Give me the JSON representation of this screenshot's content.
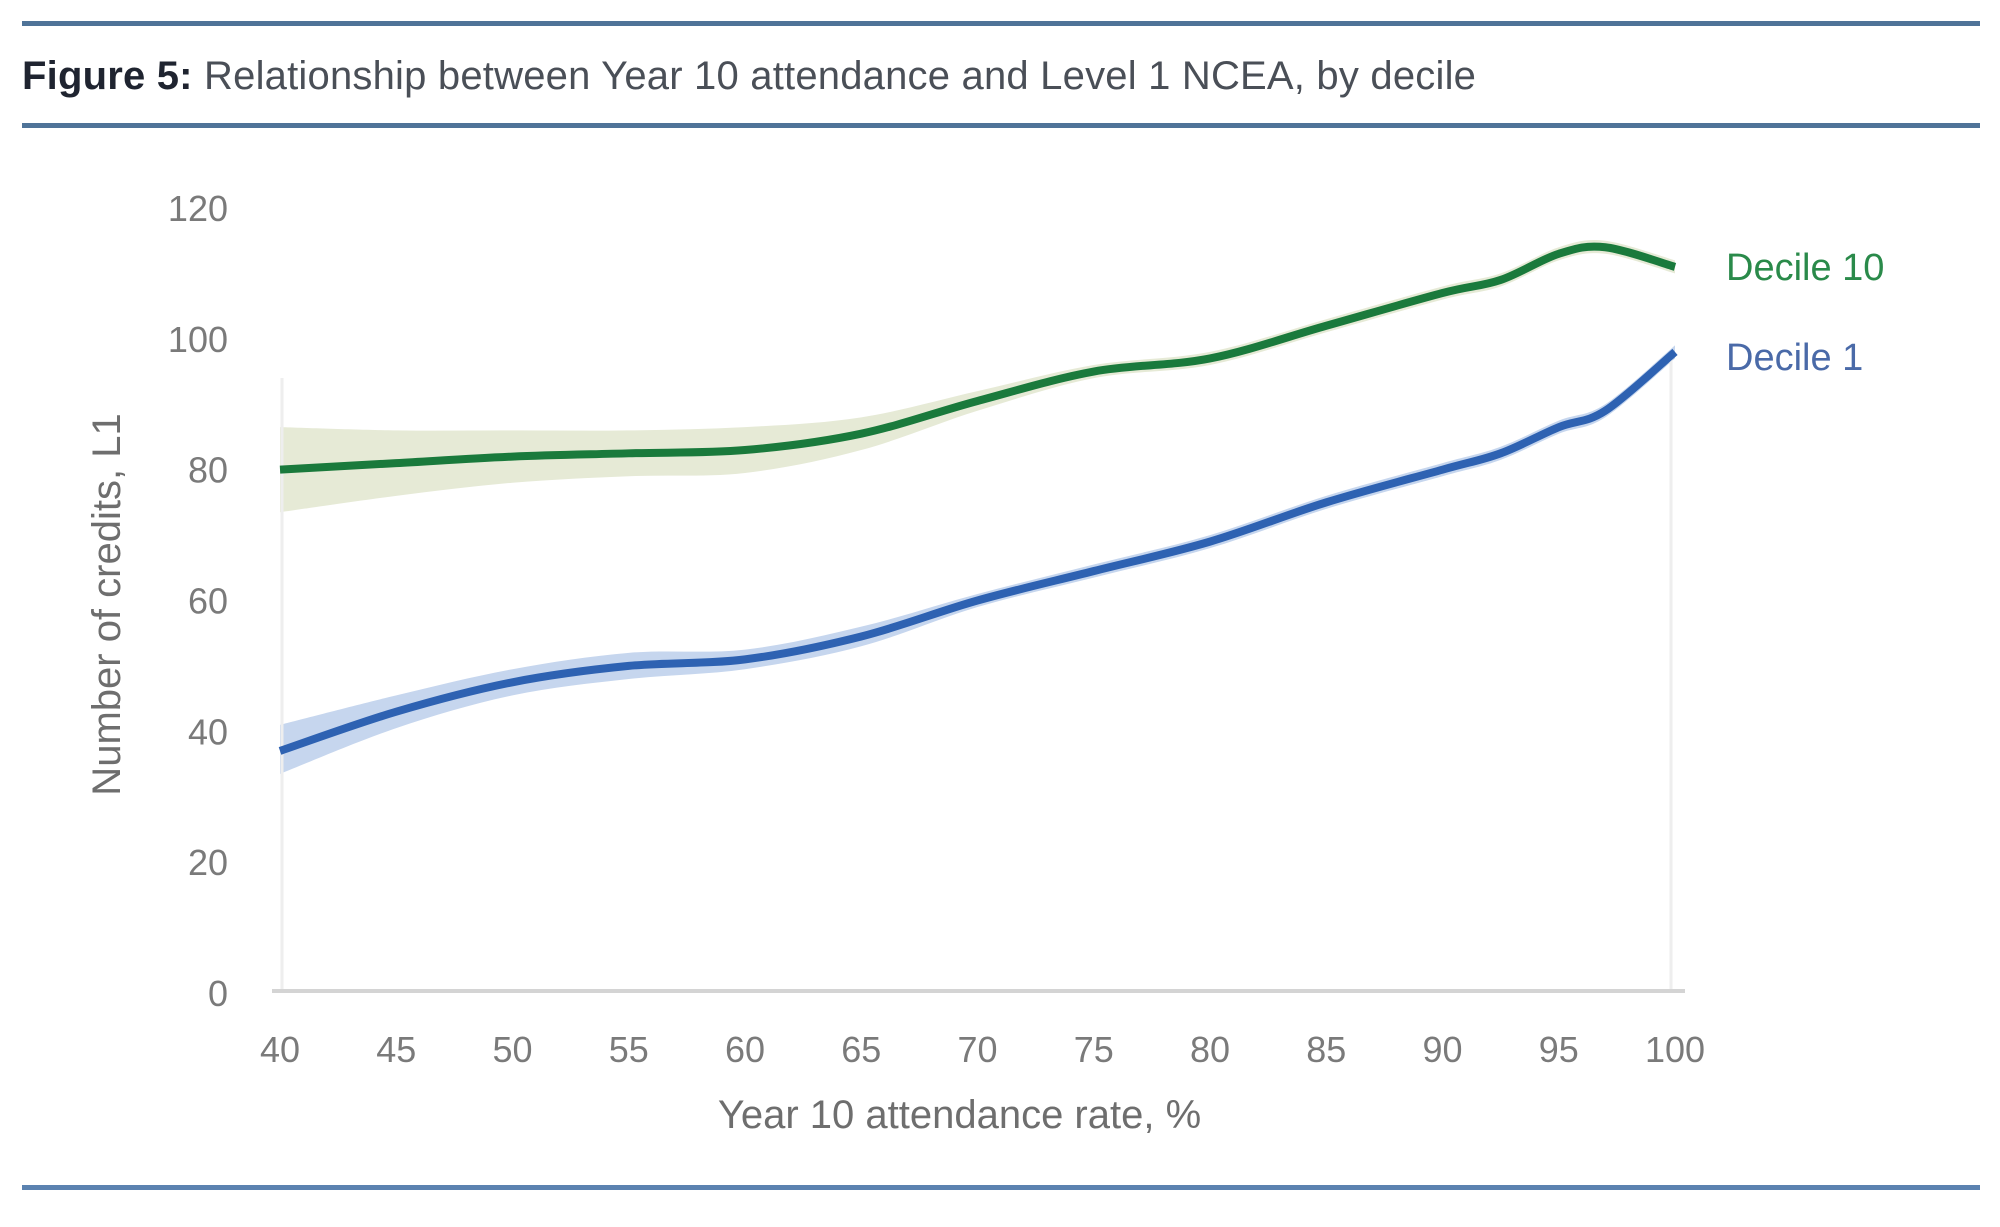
{
  "figure": {
    "number_label": "Figure 5:",
    "title": "Relationship between Year 10 attendance and Level 1 NCEA, by decile"
  },
  "colors": {
    "rule": "#4f7398",
    "decile10_line": "#1a7a3c",
    "decile10_band": "#e6ead6",
    "decile10_label": "#2a8a4a",
    "decile1_line": "#2e62b2",
    "decile1_band": "#c6d6ee",
    "decile1_label": "#4a6aa8",
    "axis": "#d4d4d4",
    "tick_text": "#7a7a7a"
  },
  "chart_data": {
    "type": "line",
    "title": "Relationship between Year 10 attendance and Level 1 NCEA, by decile",
    "xlabel": "Year 10 attendance rate, %",
    "ylabel": "Number of credits, L1",
    "xlim": [
      40,
      100
    ],
    "ylim": [
      0,
      120
    ],
    "xticks": [
      40,
      45,
      50,
      55,
      60,
      65,
      70,
      75,
      80,
      85,
      90,
      95,
      100
    ],
    "yticks": [
      0,
      20,
      40,
      60,
      80,
      100,
      120
    ],
    "grid": false,
    "legend": "inline labels at right end of lines",
    "x": [
      40,
      45,
      50,
      55,
      60,
      65,
      70,
      75,
      80,
      85,
      90,
      92.5,
      95,
      97,
      100
    ],
    "series": [
      {
        "name": "Decile 10",
        "values": [
          80,
          81,
          82,
          82.5,
          83,
          85.5,
          90.5,
          95,
          97,
          102,
          107,
          109,
          113,
          114,
          111
        ],
        "ci_lower": [
          73.5,
          76,
          78,
          79,
          79.5,
          83,
          89,
          94,
          96,
          101,
          106,
          108,
          112,
          113,
          110
        ],
        "ci_upper": [
          86.5,
          86,
          86,
          86,
          86.5,
          88,
          92,
          96,
          98,
          103,
          108,
          110,
          114,
          115,
          112
        ]
      },
      {
        "name": "Decile 1",
        "values": [
          37,
          43,
          47.5,
          50,
          51,
          54.5,
          60,
          64.5,
          69,
          75,
          80,
          82.5,
          86.5,
          89,
          98
        ],
        "ci_lower": [
          33.5,
          40.5,
          45.5,
          48,
          49.5,
          53,
          59,
          63.5,
          68,
          74,
          79,
          81.5,
          85.5,
          88,
          97
        ],
        "ci_upper": [
          41,
          45.5,
          49.5,
          52,
          52.5,
          56,
          61,
          65.5,
          70,
          76,
          81,
          83.5,
          87.5,
          90,
          99
        ]
      }
    ]
  }
}
